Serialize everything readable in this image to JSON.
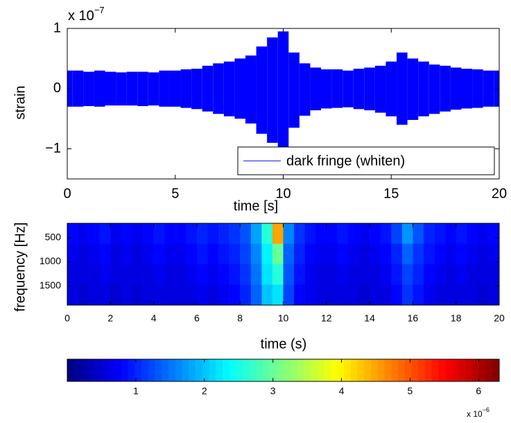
{
  "chart_data": [
    {
      "type": "area",
      "x_label": "time [s]",
      "y_label": "strain",
      "y_multiplier": "x 10",
      "y_multiplier_exp": "−7",
      "xlim": [
        0,
        20
      ],
      "ylim": [
        -1.5,
        1
      ],
      "xticks": [
        0,
        5,
        10,
        15,
        20
      ],
      "yticks": [
        {
          "value": -1,
          "label": "−1"
        },
        0,
        1
      ],
      "legend": "lower right",
      "x": [
        0,
        0.5,
        1,
        1.5,
        2,
        2.5,
        3,
        3.5,
        4,
        4.5,
        5,
        5.5,
        6,
        6.5,
        7,
        7.5,
        8,
        8.5,
        9,
        9.5,
        10,
        10.5,
        11,
        11.5,
        12,
        12.5,
        13,
        13.5,
        14,
        14.5,
        15,
        15.5,
        16,
        16.5,
        17,
        17.5,
        18,
        18.5,
        19,
        19.5,
        20
      ],
      "series": [
        {
          "name": "dark fringe (whiten)",
          "color": "#0000ff",
          "upper": [
            0.3,
            0.3,
            0.28,
            0.3,
            0.28,
            0.27,
            0.28,
            0.28,
            0.27,
            0.3,
            0.3,
            0.32,
            0.33,
            0.38,
            0.42,
            0.45,
            0.5,
            0.55,
            0.7,
            0.85,
            0.95,
            0.6,
            0.42,
            0.35,
            0.32,
            0.32,
            0.3,
            0.33,
            0.35,
            0.38,
            0.45,
            0.6,
            0.5,
            0.45,
            0.4,
            0.38,
            0.35,
            0.33,
            0.32,
            0.3,
            0.3
          ],
          "lower": [
            -0.3,
            -0.3,
            -0.29,
            -0.3,
            -0.28,
            -0.28,
            -0.28,
            -0.29,
            -0.28,
            -0.3,
            -0.3,
            -0.32,
            -0.34,
            -0.38,
            -0.42,
            -0.46,
            -0.5,
            -0.58,
            -0.75,
            -0.9,
            -1,
            -0.65,
            -0.45,
            -0.36,
            -0.33,
            -0.32,
            -0.31,
            -0.34,
            -0.36,
            -0.4,
            -0.46,
            -0.6,
            -0.52,
            -0.46,
            -0.42,
            -0.38,
            -0.35,
            -0.33,
            -0.32,
            -0.3,
            -0.3
          ]
        }
      ]
    },
    {
      "type": "heatmap",
      "x_label": "time (s)",
      "y_label": "frequency [Hz]",
      "xlim": [
        0,
        20
      ],
      "ylim": [
        200,
        1900
      ],
      "y_reversed": true,
      "xticks": [
        0,
        2,
        4,
        6,
        8,
        10,
        12,
        14,
        16,
        18,
        20
      ],
      "yticks": [
        500,
        1000,
        1500
      ],
      "x_bins": [
        0,
        0.5,
        1,
        1.5,
        2,
        2.5,
        3,
        3.5,
        4,
        4.5,
        5,
        5.5,
        6,
        6.5,
        7,
        7.5,
        8,
        8.5,
        9,
        9.5,
        10,
        10.5,
        11,
        11.5,
        12,
        12.5,
        13,
        13.5,
        14,
        14.5,
        15,
        15.5,
        16,
        16.5,
        17,
        17.5,
        18,
        18.5,
        19,
        19.5,
        20
      ],
      "y_bins": [
        200,
        625,
        1050,
        1475,
        1900
      ],
      "z": [
        [
          0.8,
          0.7,
          0.8,
          0.9,
          0.7,
          0.8,
          0.7,
          0.8,
          0.9,
          0.8,
          0.8,
          0.9,
          1.0,
          0.9,
          1.0,
          1.1,
          1.3,
          1.8,
          2.6,
          4.5,
          1.6,
          1.1,
          0.9,
          0.8,
          0.8,
          0.9,
          0.8,
          0.7,
          0.8,
          0.9,
          1.2,
          1.7,
          1.3,
          1.0,
          0.9,
          0.8,
          0.9,
          0.8,
          0.7,
          0.8
        ],
        [
          0.7,
          0.6,
          0.7,
          0.8,
          0.6,
          0.7,
          0.6,
          0.7,
          0.8,
          0.7,
          0.7,
          0.8,
          0.9,
          0.8,
          0.9,
          1.0,
          1.2,
          1.6,
          2.3,
          3.0,
          1.4,
          1.0,
          0.8,
          0.7,
          0.7,
          0.8,
          0.7,
          0.6,
          0.7,
          0.8,
          1.0,
          1.4,
          1.1,
          0.9,
          0.8,
          0.7,
          0.8,
          0.7,
          0.6,
          0.7
        ],
        [
          0.6,
          0.6,
          0.6,
          0.7,
          0.6,
          0.6,
          0.6,
          0.6,
          0.7,
          0.6,
          0.6,
          0.7,
          0.8,
          0.7,
          0.8,
          0.9,
          1.1,
          1.5,
          2.2,
          2.6,
          1.3,
          0.9,
          0.7,
          0.6,
          0.6,
          0.7,
          0.6,
          0.6,
          0.6,
          0.7,
          0.9,
          1.2,
          1.0,
          0.8,
          0.7,
          0.6,
          0.7,
          0.6,
          0.6,
          0.6
        ],
        [
          0.6,
          0.5,
          0.6,
          0.6,
          0.5,
          0.6,
          0.5,
          0.6,
          0.6,
          0.6,
          0.6,
          0.6,
          0.7,
          0.6,
          0.7,
          0.8,
          1.0,
          1.4,
          2.0,
          2.2,
          1.2,
          0.8,
          0.7,
          0.6,
          0.6,
          0.6,
          0.6,
          0.5,
          0.6,
          0.6,
          0.8,
          1.1,
          0.9,
          0.7,
          0.6,
          0.6,
          0.6,
          0.6,
          0.5,
          0.6
        ]
      ],
      "colormap": "jet",
      "clim": [
        0,
        6.3
      ],
      "cticks": [
        1,
        2,
        3,
        4,
        5,
        6
      ],
      "c_multiplier": "x 10",
      "c_multiplier_exp": "−6"
    }
  ]
}
